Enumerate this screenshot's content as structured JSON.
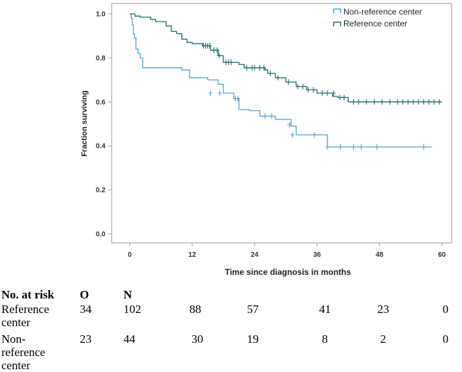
{
  "chart_data": {
    "type": "line",
    "subtype": "kaplan-meier",
    "title": "",
    "xlabel": "Time since diagnosis in months",
    "ylabel": "Fraction surviving",
    "xlim": [
      0,
      60
    ],
    "ylim": [
      0,
      1.0
    ],
    "x_ticks": [
      0,
      12,
      24,
      36,
      48,
      60
    ],
    "x_tick_labels": [
      "0",
      "12",
      "24",
      "36",
      "48",
      "60"
    ],
    "y_ticks": [
      0.0,
      0.2,
      0.4,
      0.6,
      0.8,
      1.0
    ],
    "y_tick_labels": [
      "0.0",
      "0.2",
      "0.4",
      "0.6",
      "0.8",
      "1.0"
    ],
    "legend_position": "top-right",
    "series": [
      {
        "name": "Non-reference center",
        "color": "#4da3d9",
        "steps": [
          [
            0,
            1.0
          ],
          [
            0.3,
            0.98
          ],
          [
            0.5,
            0.95
          ],
          [
            0.7,
            0.91
          ],
          [
            0.9,
            0.89
          ],
          [
            1.2,
            0.84
          ],
          [
            1.6,
            0.82
          ],
          [
            2.0,
            0.8
          ],
          [
            2.5,
            0.755
          ],
          [
            10.0,
            0.745
          ],
          [
            11.5,
            0.71
          ],
          [
            15.0,
            0.7
          ],
          [
            17.0,
            0.68
          ],
          [
            18.0,
            0.64
          ],
          [
            20.0,
            0.615
          ],
          [
            21.0,
            0.565
          ],
          [
            23.0,
            0.56
          ],
          [
            25.0,
            0.535
          ],
          [
            28.0,
            0.52
          ],
          [
            31.0,
            0.49
          ],
          [
            32.0,
            0.45
          ],
          [
            38.0,
            0.395
          ],
          [
            58.0,
            0.395
          ]
        ],
        "censored": [
          [
            15.5,
            0.64
          ],
          [
            17.3,
            0.64
          ],
          [
            20.3,
            0.615
          ],
          [
            20.8,
            0.615
          ],
          [
            26.0,
            0.535
          ],
          [
            27.3,
            0.535
          ],
          [
            30.7,
            0.495
          ],
          [
            31.3,
            0.45
          ],
          [
            35.5,
            0.45
          ],
          [
            38.0,
            0.395
          ],
          [
            40.5,
            0.395
          ],
          [
            43.0,
            0.395
          ],
          [
            44.5,
            0.395
          ],
          [
            47.5,
            0.395
          ],
          [
            56.5,
            0.395
          ]
        ]
      },
      {
        "name": "Reference center",
        "color": "#1f6e6a",
        "steps": [
          [
            0,
            1.0
          ],
          [
            0.5,
            1.0
          ],
          [
            1.0,
            0.99
          ],
          [
            2.0,
            0.985
          ],
          [
            4.0,
            0.975
          ],
          [
            5.0,
            0.965
          ],
          [
            7.0,
            0.945
          ],
          [
            8.0,
            0.92
          ],
          [
            9.0,
            0.91
          ],
          [
            10.0,
            0.885
          ],
          [
            11.0,
            0.87
          ],
          [
            12.0,
            0.865
          ],
          [
            14.0,
            0.855
          ],
          [
            15.5,
            0.835
          ],
          [
            17.0,
            0.81
          ],
          [
            18.0,
            0.78
          ],
          [
            21.0,
            0.77
          ],
          [
            22.0,
            0.755
          ],
          [
            26.0,
            0.745
          ],
          [
            26.5,
            0.73
          ],
          [
            28.0,
            0.71
          ],
          [
            30.0,
            0.69
          ],
          [
            32.0,
            0.67
          ],
          [
            34.0,
            0.655
          ],
          [
            36.0,
            0.64
          ],
          [
            39.0,
            0.625
          ],
          [
            40.0,
            0.62
          ],
          [
            42.0,
            0.6
          ],
          [
            60.0,
            0.6
          ]
        ],
        "censored": [
          [
            14.2,
            0.855
          ],
          [
            14.6,
            0.855
          ],
          [
            15.0,
            0.855
          ],
          [
            15.4,
            0.855
          ],
          [
            16.2,
            0.835
          ],
          [
            16.8,
            0.835
          ],
          [
            17.2,
            0.81
          ],
          [
            18.5,
            0.78
          ],
          [
            19.0,
            0.78
          ],
          [
            19.5,
            0.78
          ],
          [
            22.5,
            0.755
          ],
          [
            23.5,
            0.755
          ],
          [
            24.0,
            0.755
          ],
          [
            25.0,
            0.755
          ],
          [
            25.8,
            0.755
          ],
          [
            27.0,
            0.73
          ],
          [
            28.5,
            0.71
          ],
          [
            30.5,
            0.69
          ],
          [
            32.3,
            0.67
          ],
          [
            33.3,
            0.67
          ],
          [
            34.3,
            0.655
          ],
          [
            35.3,
            0.655
          ],
          [
            37.0,
            0.64
          ],
          [
            38.0,
            0.64
          ],
          [
            39.2,
            0.64
          ],
          [
            40.4,
            0.62
          ],
          [
            41.2,
            0.62
          ],
          [
            43.0,
            0.6
          ],
          [
            44.0,
            0.6
          ],
          [
            45.5,
            0.6
          ],
          [
            47.0,
            0.6
          ],
          [
            48.5,
            0.6
          ],
          [
            50.0,
            0.6
          ],
          [
            51.5,
            0.6
          ],
          [
            52.5,
            0.6
          ],
          [
            53.5,
            0.6
          ],
          [
            54.5,
            0.6
          ],
          [
            55.5,
            0.6
          ],
          [
            56.5,
            0.6
          ],
          [
            57.5,
            0.6
          ],
          [
            58.5,
            0.6
          ],
          [
            59.5,
            0.6
          ]
        ]
      }
    ]
  },
  "risk_table": {
    "title": "No. at risk",
    "col_o": "O",
    "col_n": "N",
    "rows": [
      {
        "label_l1": "Reference",
        "label_l2": "center",
        "label_l3": "",
        "o": "34",
        "values": [
          "102",
          "88",
          "57",
          "41",
          "23",
          "0"
        ]
      },
      {
        "label_l1": "Non-",
        "label_l2": "reference",
        "label_l3": "center",
        "o": "23",
        "values": [
          "44",
          "30",
          "19",
          "8",
          "2",
          "0"
        ]
      }
    ]
  }
}
